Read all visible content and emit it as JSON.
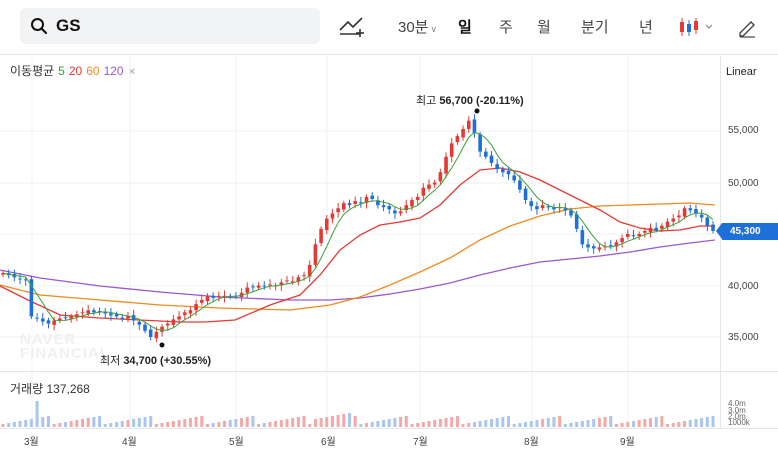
{
  "search": {
    "query": "GS",
    "icon": "search-icon"
  },
  "tabs": [
    {
      "label": "30분",
      "active": false
    },
    {
      "label": "일",
      "active": true
    },
    {
      "label": "주",
      "active": false
    },
    {
      "label": "월",
      "active": false
    },
    {
      "label": "분기",
      "active": false
    },
    {
      "label": "년",
      "active": false
    }
  ],
  "moving_average": {
    "label": "이동평균",
    "periods": [
      "5",
      "20",
      "60",
      "120"
    ]
  },
  "scale_mode": "Linear",
  "watermark": [
    "NAVER",
    "FINANCIAL"
  ],
  "current_price": "45,300",
  "high": {
    "label": "최고",
    "value": "56,700",
    "change": "(-20.11%)"
  },
  "low": {
    "label": "최저",
    "value": "34,700",
    "change": "(+30.55%)"
  },
  "volume": {
    "label": "거래량",
    "value": "137,268",
    "ticks": [
      "4.0m",
      "3.0m",
      "2.0m",
      "1000k"
    ]
  },
  "months": [
    "3월",
    "4월",
    "5월",
    "6월",
    "7월",
    "8월",
    "9월"
  ],
  "colors": {
    "up": "#e53935",
    "down": "#1f6fd8",
    "ma5": "#3aa037",
    "ma20": "#e53935",
    "ma60": "#f08a1c",
    "ma120": "#9b59d0"
  },
  "chart_data": {
    "type": "candlestick",
    "y_ticks": [
      "55,000",
      "50,000",
      "45,000",
      "40,000",
      "35,000"
    ],
    "ylim": [
      33000,
      58500
    ],
    "closes": [
      41200,
      41000,
      40800,
      40600,
      40500,
      37000,
      36800,
      36500,
      36300,
      36600,
      36800,
      36900,
      37000,
      37200,
      37400,
      37600,
      37400,
      37500,
      37300,
      37100,
      37000,
      36800,
      37000,
      36600,
      36200,
      35600,
      35000,
      35500,
      36000,
      36300,
      36700,
      37000,
      37400,
      37600,
      38200,
      38600,
      39000,
      38800,
      39000,
      39000,
      38900,
      39000,
      39300,
      39800,
      39900,
      40000,
      39900,
      40100,
      40000,
      40300,
      40500,
      40400,
      40800,
      41000,
      42000,
      44000,
      45500,
      46500,
      47000,
      47500,
      48000,
      47800,
      48200,
      48000,
      48600,
      48400,
      47800,
      47600,
      47400,
      47000,
      47200,
      47800,
      48300,
      48600,
      49500,
      49800,
      50000,
      51000,
      52500,
      53800,
      54500,
      55200,
      56000,
      54800,
      53000,
      52500,
      51900,
      51300,
      51000,
      50800,
      50200,
      49300,
      48300,
      47700,
      47400,
      47800,
      47600,
      47400,
      47600,
      47300,
      46800,
      45500,
      44000,
      43700,
      43600,
      43700,
      43800,
      43900,
      44200,
      44600,
      45000,
      44800,
      45000,
      45300,
      45600,
      45400,
      45800,
      46200,
      46500,
      46800,
      47500,
      47300,
      47000,
      46600,
      45800,
      45300
    ],
    "ma20_points": "0,286 28,300 60,315 100,318 140,320 180,322 205,322 235,320 270,305 300,295 320,275 340,250 360,235 380,225 400,222 420,218 440,205 460,185 480,170 500,168 520,172 540,180 560,190 580,200 600,210 620,222 640,228 660,231 680,230 700,226 715,226",
    "ma60_points": "0,285 40,295 100,300 160,305 220,308 290,310 330,305 360,297 390,285 420,272 450,258 480,240 510,226 540,216 570,209 600,206 630,205 660,204 690,203 715,205",
    "ma120_points": "0,270 40,278 100,286 160,292 220,297 290,300 330,300 360,298 390,294 420,289 450,283 480,275 510,268 540,262 570,259 600,256 630,252 660,247 690,243 715,240"
  }
}
